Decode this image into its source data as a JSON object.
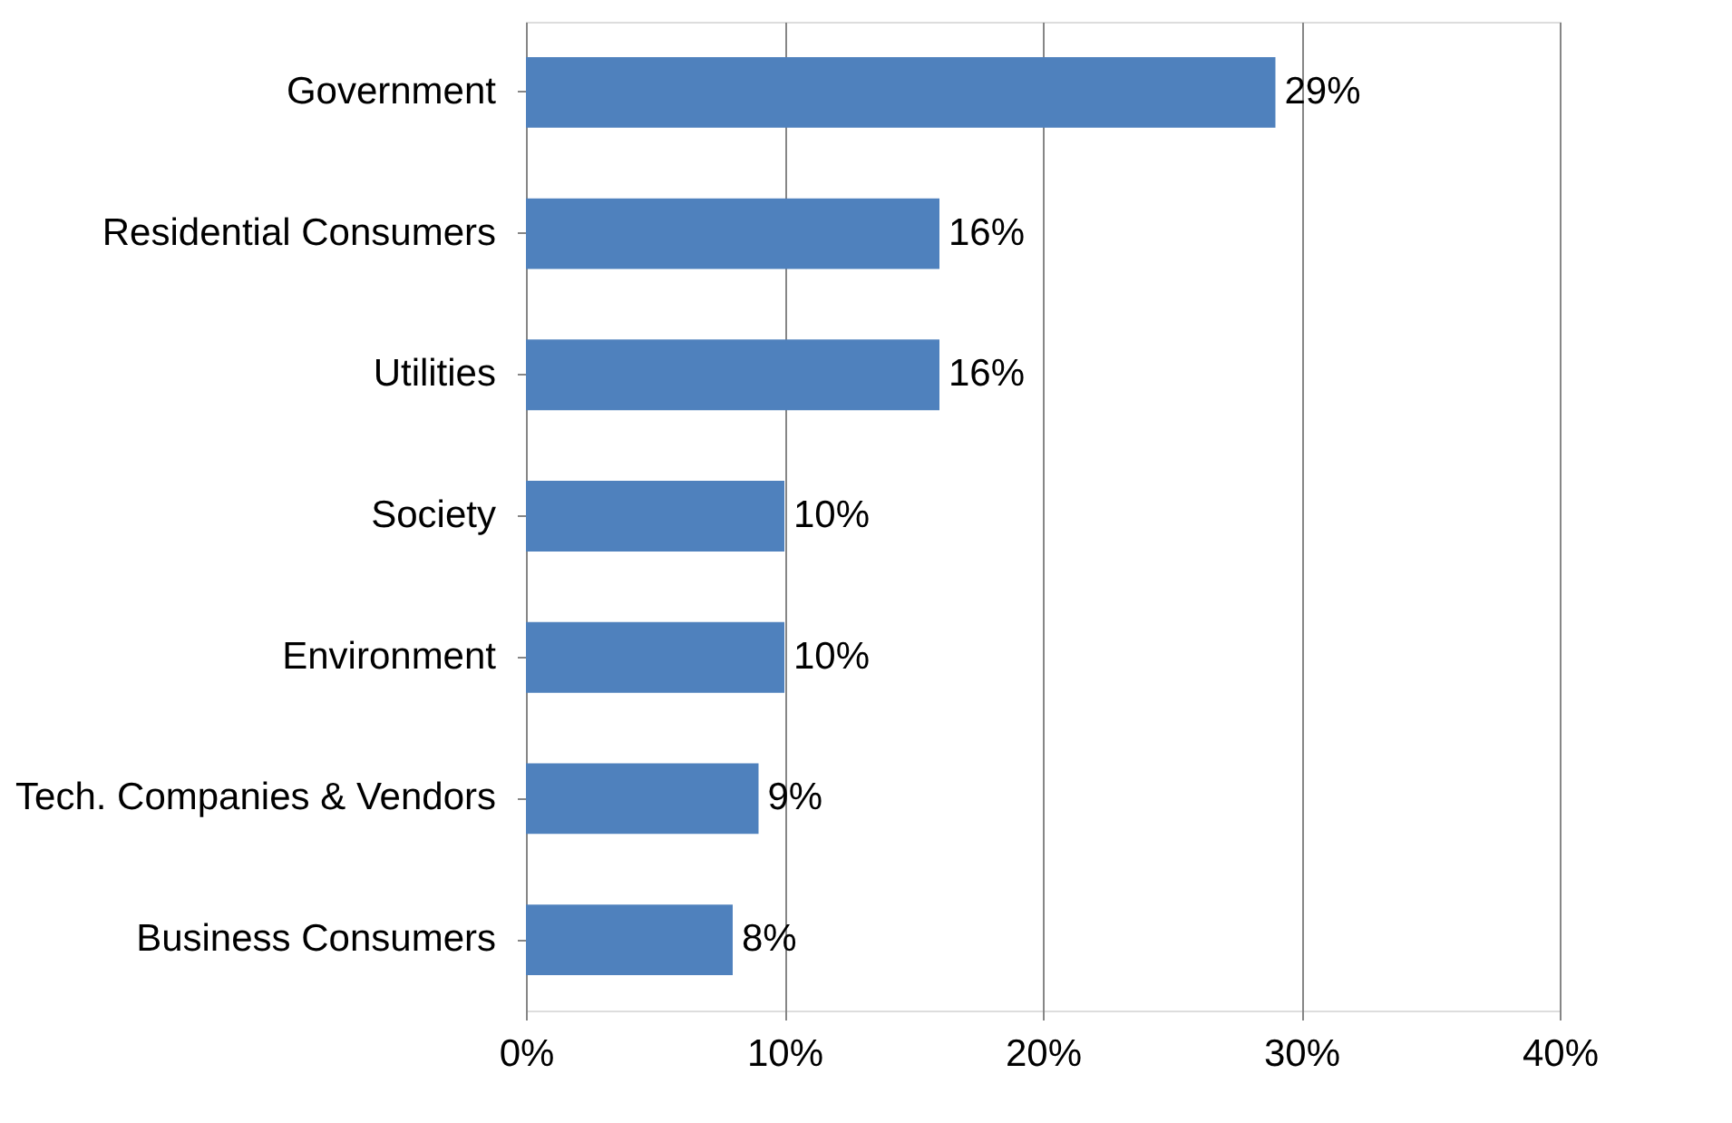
{
  "chart_data": {
    "type": "bar",
    "orientation": "horizontal",
    "categories": [
      "Government",
      "Residential Consumers",
      "Utilities",
      "Society",
      "Environment",
      "Tech. Companies & Vendors",
      "Business Consumers"
    ],
    "values": [
      29,
      16,
      16,
      10,
      10,
      9,
      8
    ],
    "value_labels": [
      "29%",
      "16%",
      "16%",
      "10%",
      "10%",
      "9%",
      "8%"
    ],
    "color": "#4f81bd",
    "xlim": [
      0,
      40
    ],
    "xticks": [
      {
        "value": 0,
        "label": "0%"
      },
      {
        "value": 10,
        "label": "10%"
      },
      {
        "value": 20,
        "label": "20%"
      },
      {
        "value": 30,
        "label": "30%"
      },
      {
        "value": 40,
        "label": "40%"
      }
    ],
    "grid": "x"
  }
}
